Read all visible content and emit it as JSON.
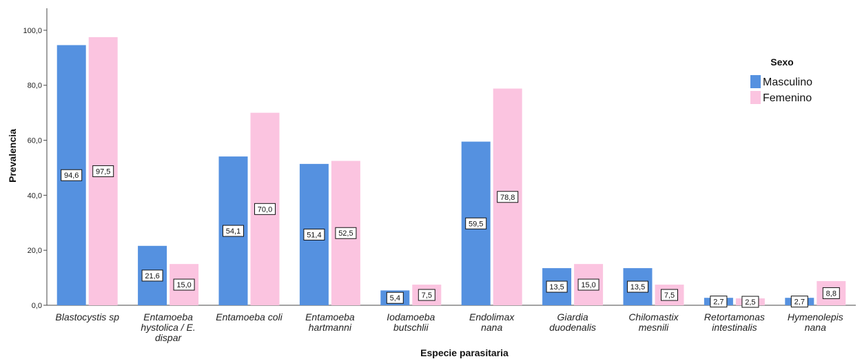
{
  "chart_data": {
    "type": "bar",
    "xlabel": "Especie parasitaria",
    "ylabel": "Prevalencia",
    "ylim": [
      0,
      108
    ],
    "yticks": [
      "0,0",
      "20,0",
      "40,0",
      "60,0",
      "80,0",
      "100,0"
    ],
    "grid": false,
    "legend_title": "Sexo",
    "legend_position": "top-right",
    "categories": [
      [
        "Blastocystis sp"
      ],
      [
        "Entamoeba",
        "hystolica / E.",
        "dispar"
      ],
      [
        "Entamoeba coli"
      ],
      [
        "Entamoeba",
        "hartmanni"
      ],
      [
        "Iodamoeba",
        "butschlii"
      ],
      [
        "Endolimax",
        "nana"
      ],
      [
        "Giardia",
        "duodenalis"
      ],
      [
        "Chilomastix",
        "mesnili"
      ],
      [
        "Retortamonas",
        "intestinalis"
      ],
      [
        "Hymenolepis",
        "nana"
      ]
    ],
    "series": [
      {
        "name": "Masculino",
        "color": "#5591e0",
        "values": [
          94.6,
          21.6,
          54.1,
          51.4,
          5.4,
          59.5,
          13.5,
          13.5,
          2.7,
          2.7
        ],
        "labels": [
          "94,6",
          "21,6",
          "54,1",
          "51,4",
          "5,4",
          "59,5",
          "13,5",
          "13,5",
          "2,7",
          "2,7"
        ]
      },
      {
        "name": "Femenino",
        "color": "#fbc4e0",
        "values": [
          97.5,
          15.0,
          70.0,
          52.5,
          7.5,
          78.8,
          15.0,
          7.5,
          2.5,
          8.8
        ],
        "labels": [
          "97,5",
          "15,0",
          "70,0",
          "52,5",
          "7,5",
          "78,8",
          "15,0",
          "7,5",
          "2,5",
          "8,8"
        ]
      }
    ]
  }
}
